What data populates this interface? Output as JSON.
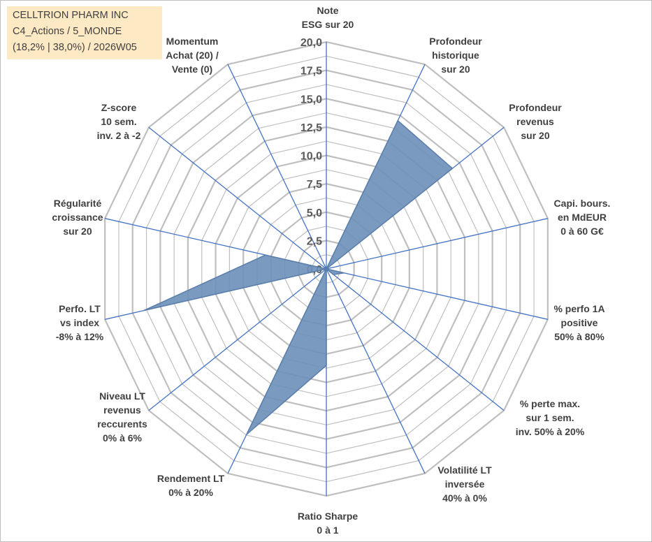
{
  "info_box": {
    "line1": "CELLTRION PHARM INC",
    "line2": "C4_Actions / 5_MONDE",
    "line3": "(18,2% | 38,0%) / 2026W05"
  },
  "colors": {
    "fill": "#6b8fb9",
    "stroke": "#5a7eaa",
    "grid": "#bfbfbf",
    "spoke": "#4472c4"
  },
  "chart_data": {
    "type": "radar",
    "title": "",
    "rmin": 0,
    "rmax": 20,
    "rings": 16,
    "grid": true,
    "ticks": [
      "0,0",
      "2,5",
      "5,0",
      "7,5",
      "10,0",
      "12,5",
      "15,0",
      "17,5",
      "20,0"
    ],
    "axes": [
      {
        "lines": [
          "Note",
          "ESG sur 20"
        ]
      },
      {
        "lines": [
          "Profondeur",
          "historique",
          "sur 20"
        ]
      },
      {
        "lines": [
          "Profondeur",
          "revenus",
          "sur 20"
        ]
      },
      {
        "lines": [
          "Capi. bours.",
          "en MdEUR",
          "0 à 60 G€"
        ]
      },
      {
        "lines": [
          "% perfo 1A",
          "positive",
          "50% à 80%"
        ]
      },
      {
        "lines": [
          "% perte max.",
          "sur 1 sem.",
          "inv. 50% à 20%"
        ]
      },
      {
        "lines": [
          "Volatilité LT",
          "inversée",
          "40% à 0%"
        ]
      },
      {
        "lines": [
          "Ratio Sharpe",
          "0 à 1"
        ]
      },
      {
        "lines": [
          "Rendement LT",
          "0% à 20%"
        ]
      },
      {
        "lines": [
          "Niveau LT",
          "revenus",
          "reccurents",
          "0% à 6%"
        ]
      },
      {
        "lines": [
          "Perfo. LT",
          "vs index",
          "-8% à 12%"
        ]
      },
      {
        "lines": [
          "Régularité",
          "croissance",
          "sur 20"
        ]
      },
      {
        "lines": [
          "Z-score",
          "10 sem.",
          "inv. 2 à -2"
        ]
      },
      {
        "lines": [
          "Momentum",
          "Achat (20) /",
          "Vente (0)"
        ]
      }
    ],
    "series": [
      {
        "values": [
          0,
          14.5,
          14.2,
          0,
          1.6,
          0.8,
          0,
          8.5,
          16.2,
          0,
          16.5,
          5.5,
          0,
          0
        ]
      }
    ]
  }
}
